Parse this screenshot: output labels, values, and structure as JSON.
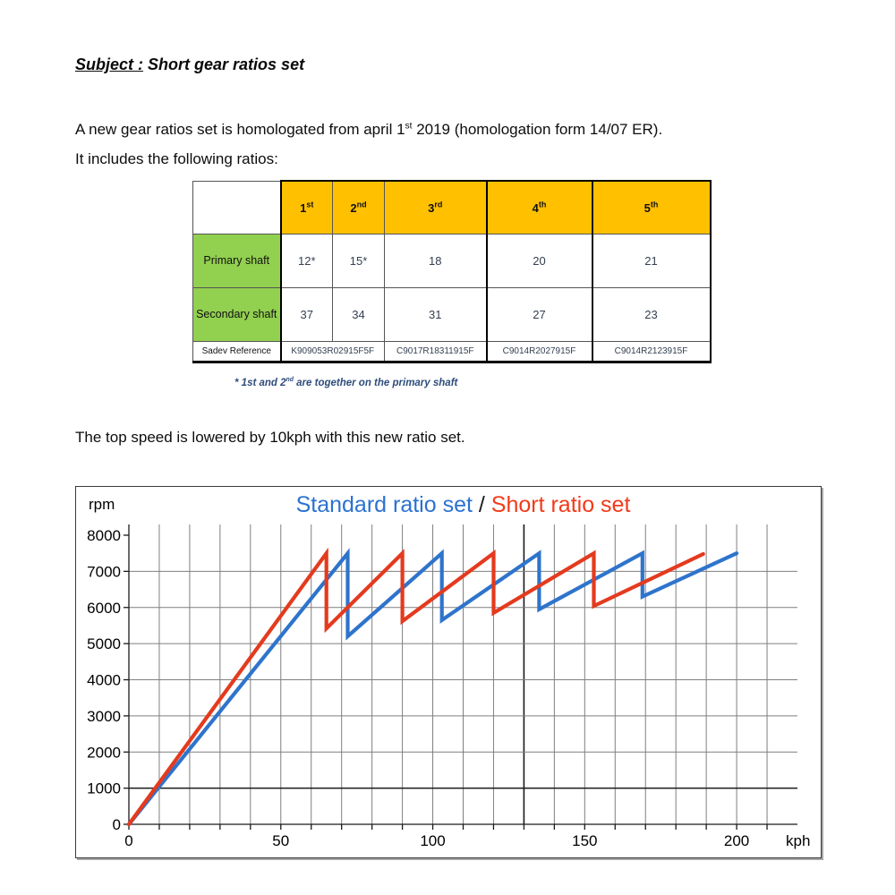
{
  "page": {
    "heading": {
      "underlined": "Subject :",
      "rest": " Short gear ratios set"
    },
    "para1_line1": {
      "pre": "A new gear ratios set is homologated from april 1",
      "sup": "st",
      "post": " 2019 (homologation form 14/07 ER)."
    },
    "para1_line2": "It includes the following ratios:",
    "para2": "The top speed is lowered by 10kph with this new ratio set."
  },
  "table": {
    "columns": [
      {
        "base": "1",
        "sup": "st"
      },
      {
        "base": "2",
        "sup": "nd"
      },
      {
        "base": "3",
        "sup": "rd"
      },
      {
        "base": "4",
        "sup": "th"
      },
      {
        "base": "5",
        "sup": "th"
      }
    ],
    "rows": [
      {
        "label": "Primary shaft",
        "values": [
          "12*",
          "15*",
          "18",
          "20",
          "21"
        ]
      },
      {
        "label": "Secondary shaft",
        "values": [
          "37",
          "34",
          "31",
          "27",
          "23"
        ]
      }
    ],
    "reference_row": {
      "label": "Sadev Reference",
      "values": [
        "K909053R02915F5F",
        "C9017R18311915F",
        "C9014R2027915F",
        "C9014R2123915F"
      ]
    },
    "footnote": {
      "pre": "* 1st and 2",
      "sup": "nd",
      "post": " are together on the primary shaft"
    },
    "colors": {
      "header_bg": "#FFC000",
      "row_label_bg": "#92D050",
      "value_text": "#333F50",
      "footnote_text": "#2E4D7B"
    }
  },
  "chart_data": {
    "type": "line",
    "title_parts": [
      {
        "text": "Standard ratio set",
        "color": "#2b72d0"
      },
      {
        "text": " / ",
        "color": "#1a1a1a"
      },
      {
        "text": "Short ratio set",
        "color": "#f23a19"
      }
    ],
    "y_axis_label": "rpm",
    "x_axis_label": "kph",
    "xlim": [
      0,
      220
    ],
    "ylim": [
      0,
      8000
    ],
    "x_gridline_step": 10,
    "y_gridline_step": 1000,
    "x_tick_labels": [
      0,
      50,
      100,
      150,
      200
    ],
    "y_tick_labels": [
      8000,
      7000,
      6000,
      5000,
      4000,
      3000,
      2000,
      1000,
      0
    ],
    "emphasis_vline_x": 130,
    "emphasis_hline_y": 1000,
    "grid_color": "#7f7f7f",
    "emphasis_color": "#1a1a1a",
    "axis_color": "#1a1a1a",
    "series": [
      {
        "name": "Standard ratio set",
        "color": "#2e74cc",
        "points": [
          [
            0,
            0
          ],
          [
            72,
            7500
          ],
          [
            72,
            5200
          ],
          [
            103,
            7500
          ],
          [
            103,
            5650
          ],
          [
            135,
            7500
          ],
          [
            135,
            5950
          ],
          [
            169,
            7500
          ],
          [
            169,
            6300
          ],
          [
            200,
            7500
          ]
        ]
      },
      {
        "name": "Short ratio set",
        "color": "#e43a1e",
        "points": [
          [
            0,
            0
          ],
          [
            65,
            7500
          ],
          [
            65,
            5420
          ],
          [
            90,
            7500
          ],
          [
            90,
            5620
          ],
          [
            120,
            7500
          ],
          [
            120,
            5850
          ],
          [
            153,
            7500
          ],
          [
            153,
            6040
          ],
          [
            189,
            7480
          ]
        ]
      }
    ]
  }
}
